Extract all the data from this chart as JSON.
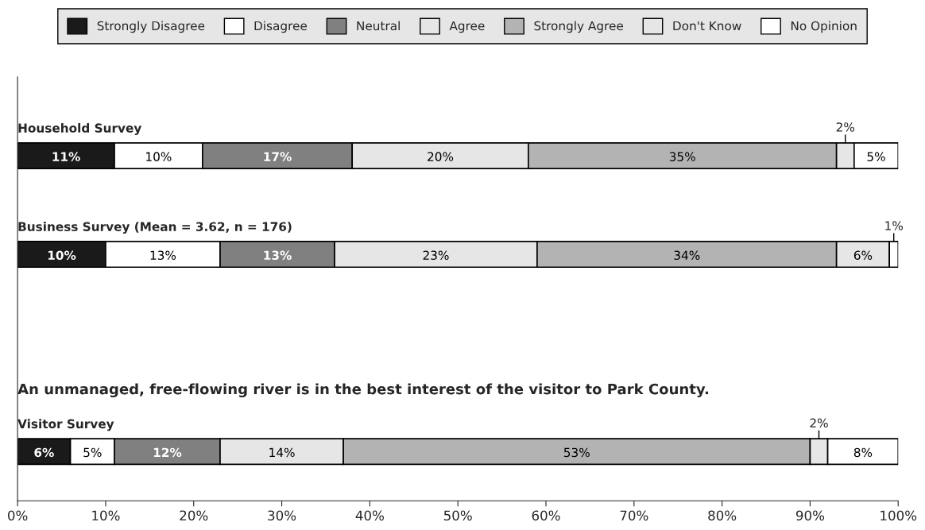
{
  "chart_data": {
    "type": "bar",
    "orientation": "horizontal",
    "stacked": true,
    "categories": [
      "Household Survey",
      "Business Survey (Mean = 3.62, n = 176)",
      null,
      "Visitor Survey"
    ],
    "series": [
      {
        "name": "Strongly Disagree",
        "color": "#1a1a1a",
        "values": [
          11,
          10,
          null,
          6
        ],
        "value_labels": [
          "11%",
          "10%",
          null,
          "6%"
        ]
      },
      {
        "name": "Disagree",
        "color": "#ffffff",
        "values": [
          10,
          13,
          null,
          5
        ],
        "value_labels": [
          "10%",
          "13%",
          null,
          "5%"
        ]
      },
      {
        "name": "Neutral",
        "color": "#808080",
        "values": [
          17,
          13,
          null,
          12
        ],
        "value_labels": [
          "17%",
          "13%",
          null,
          "12%"
        ]
      },
      {
        "name": "Agree",
        "color": "#e6e6e6",
        "values": [
          20,
          23,
          null,
          14
        ],
        "value_labels": [
          "20%",
          "23%",
          null,
          "14%"
        ]
      },
      {
        "name": "Strongly Agree",
        "color": "#b3b3b3",
        "values": [
          35,
          34,
          null,
          53
        ],
        "value_labels": [
          "35%",
          "34%",
          null,
          "53%"
        ]
      },
      {
        "name": "Don't Know",
        "color": "#e6e6e6",
        "values": [
          2,
          6,
          null,
          2
        ],
        "value_labels": [
          "2%",
          "6%",
          null,
          "2%"
        ]
      },
      {
        "name": "No Opinion",
        "color": "#ffffff",
        "values": [
          5,
          1,
          null,
          8
        ],
        "value_labels": [
          "5%",
          "1%",
          null,
          "8%"
        ]
      }
    ],
    "annotations": [
      "An unmanaged, free-flowing river is in the best interest of the visitor to Park County."
    ],
    "xlim": [
      0,
      100
    ],
    "xticks": [
      {
        "value": 0,
        "label": "0%"
      },
      {
        "value": 10,
        "label": "10%"
      },
      {
        "value": 20,
        "label": "20%"
      },
      {
        "value": 30,
        "label": "30%"
      },
      {
        "value": 40,
        "label": "40%"
      },
      {
        "value": 50,
        "label": "50%"
      },
      {
        "value": 60,
        "label": "60%"
      },
      {
        "value": 70,
        "label": "70%"
      },
      {
        "value": 80,
        "label": "80%"
      },
      {
        "value": 90,
        "label": "90%"
      },
      {
        "value": 100,
        "label": "100%"
      }
    ],
    "tick_labels": "x",
    "legend": "top",
    "grid": false
  }
}
